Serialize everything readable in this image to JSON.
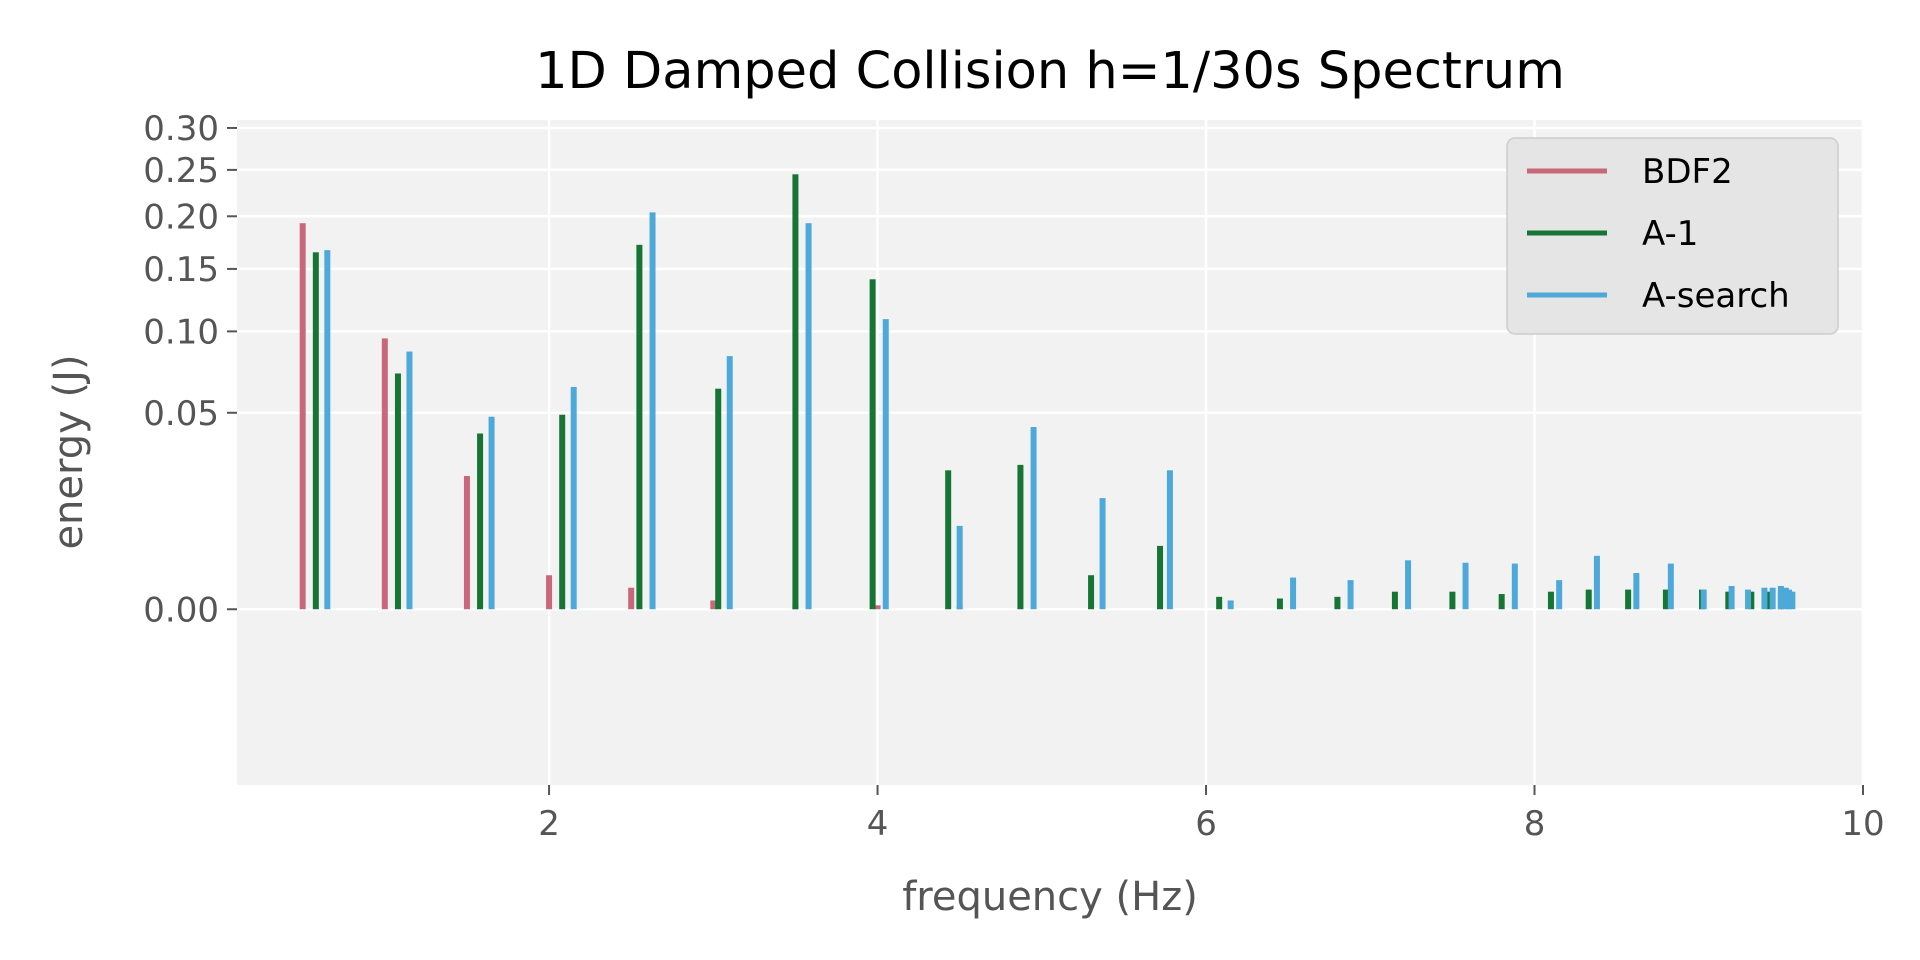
{
  "chart_data": {
    "type": "bar",
    "title": "1D Damped Collision h=1/30s Spectrum",
    "xlabel": "frequency (Hz)",
    "ylabel": "energy (J)",
    "xlim": [
      0.1,
      10
    ],
    "ylim": [
      -0.04,
      0.31
    ],
    "yscale": "sqrt",
    "grid": true,
    "legend_position": "top-right",
    "xticks": [
      "2",
      "4",
      "6",
      "8",
      "10"
    ],
    "xtick_values": [
      2,
      4,
      6,
      8,
      10
    ],
    "yticks": [
      "0.00",
      "0.05",
      "0.10",
      "0.15",
      "0.20",
      "0.25",
      "0.30"
    ],
    "ytick_values": [
      0,
      0.05,
      0.1,
      0.15,
      0.2,
      0.25,
      0.3
    ],
    "series": [
      {
        "name": "BDF2",
        "color": "#c8687a",
        "x": [
          0.5,
          1.0,
          1.5,
          2.0,
          2.5,
          3.0,
          3.5,
          4.0,
          4.5
        ],
        "values": [
          0.193,
          0.095,
          0.023,
          0.0015,
          0.0006,
          0.0001,
          3e-05,
          2e-05,
          1e-05
        ]
      },
      {
        "name": "A-1",
        "color": "#167434",
        "x": [
          0.58,
          1.08,
          1.58,
          2.08,
          2.55,
          3.03,
          3.5,
          3.97,
          4.43,
          4.87,
          5.3,
          5.72,
          6.08,
          6.45,
          6.8,
          7.15,
          7.5,
          7.8,
          8.1,
          8.33,
          8.57,
          8.8,
          9.02,
          9.18,
          9.32,
          9.43,
          9.5
        ],
        "values": [
          0.165,
          0.072,
          0.04,
          0.049,
          0.172,
          0.063,
          0.245,
          0.141,
          0.025,
          0.027,
          0.0015,
          0.0052,
          0.0002,
          0.00015,
          0.0002,
          0.0004,
          0.0004,
          0.0003,
          0.0004,
          0.0005,
          0.0005,
          0.0005,
          0.0005,
          0.0004,
          0.0004,
          0.0004,
          0.0004
        ]
      },
      {
        "name": "A-search",
        "color": "#4da9d9",
        "x": [
          0.65,
          1.15,
          1.65,
          2.15,
          2.63,
          3.1,
          3.58,
          4.05,
          4.5,
          4.95,
          5.37,
          5.78,
          6.15,
          6.53,
          6.88,
          7.23,
          7.58,
          7.88,
          8.15,
          8.38,
          8.62,
          8.83,
          9.03,
          9.2,
          9.3,
          9.4,
          9.45,
          9.5,
          9.53,
          9.55,
          9.57
        ],
        "values": [
          0.167,
          0.086,
          0.048,
          0.064,
          0.204,
          0.083,
          0.193,
          0.109,
          0.009,
          0.043,
          0.016,
          0.025,
          0.0001,
          0.0013,
          0.0011,
          0.0031,
          0.0028,
          0.0027,
          0.0011,
          0.0037,
          0.0017,
          0.0027,
          0.0005,
          0.0007,
          0.0005,
          0.0006,
          0.0006,
          0.0007,
          0.0006,
          0.0005,
          0.0004
        ]
      }
    ]
  }
}
